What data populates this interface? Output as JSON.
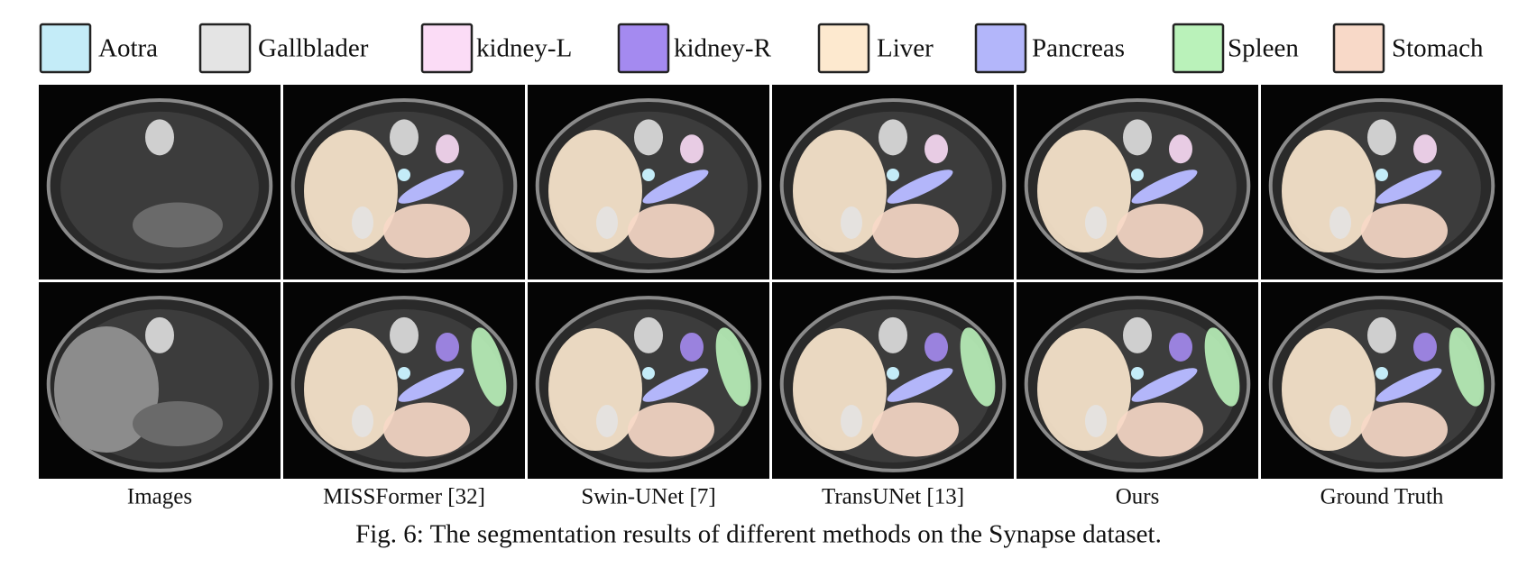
{
  "legend": [
    {
      "label": "Aotra",
      "color": "#c4ecf8"
    },
    {
      "label": "Gallblader",
      "color": "#e4e4e4"
    },
    {
      "label": "kidney-L",
      "color": "#fbdcf6"
    },
    {
      "label": "kidney-R",
      "color": "#a48af0"
    },
    {
      "label": "Liver",
      "color": "#fde9cf"
    },
    {
      "label": "Pancreas",
      "color": "#b3b6fa"
    },
    {
      "label": "Spleen",
      "color": "#baf2ba"
    },
    {
      "label": "Stomach",
      "color": "#f8d9c8"
    }
  ],
  "columns": [
    "Images",
    "MISSFormer [32]",
    "Swin-UNet [7]",
    "TransUNet [13]",
    "Ours",
    "Ground Truth"
  ],
  "caption": "Fig. 6: The segmentation results of different methods on the Synapse dataset."
}
